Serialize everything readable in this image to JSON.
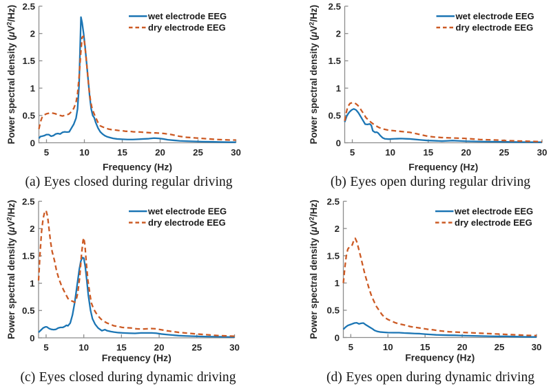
{
  "figure": {
    "background": "#ffffff",
    "colors": {
      "wet_line": "#1b75b4",
      "dry_line": "#cc5a24",
      "axis": "#8c8c8c",
      "tick_label": "#262626",
      "caption_text": "#141414"
    },
    "legend": {
      "entries": [
        {
          "label": "wet electrode EEG",
          "style": "solid"
        },
        {
          "label": "dry electrode EEG",
          "style": "dashed"
        }
      ],
      "position": "northeast",
      "box": false
    }
  },
  "chart_data": [
    {
      "id": "a",
      "type": "line",
      "caption": "(a) Eyes closed during regular driving",
      "xlabel": "Frequency (Hz)",
      "ylabel": "Power spectral density (μV²/Hz)",
      "xlim": [
        4,
        30
      ],
      "ylim": [
        0,
        2.5
      ],
      "xticks": [
        5,
        10,
        15,
        20,
        25,
        30
      ],
      "yticks": [
        0,
        0.5,
        1,
        1.5,
        2,
        2.5
      ],
      "ytick_labels": [
        "0",
        "0.5",
        "1",
        "1.5",
        "2",
        "2.5"
      ],
      "grid": false,
      "series": [
        {
          "name": "wet electrode EEG",
          "style": "solid",
          "color_key": "wet_line",
          "x": [
            4.0,
            4.2,
            4.4,
            4.7,
            5.0,
            5.3,
            5.6,
            5.9,
            6.2,
            6.5,
            6.8,
            7.1,
            7.4,
            7.7,
            8.0,
            8.3,
            8.6,
            8.9,
            9.1,
            9.3,
            9.45,
            9.55,
            9.7,
            9.9,
            10.1,
            10.3,
            10.5,
            10.7,
            10.9,
            11.1,
            11.3,
            11.5,
            11.8,
            12.1,
            12.4,
            12.7,
            13.0,
            13.4,
            13.8,
            14.3,
            15.0,
            15.7,
            16.4,
            17.1,
            17.8,
            18.5,
            19.2,
            19.8,
            20.4,
            21.0,
            21.8,
            22.6,
            23.5,
            24.5,
            25.5,
            26.5,
            27.5,
            28.5,
            29.2,
            30.0
          ],
          "y": [
            0.08,
            0.115,
            0.12,
            0.13,
            0.15,
            0.15,
            0.12,
            0.13,
            0.16,
            0.17,
            0.16,
            0.19,
            0.2,
            0.195,
            0.2,
            0.27,
            0.34,
            0.45,
            0.62,
            1.05,
            1.8,
            2.3,
            2.2,
            2.0,
            1.75,
            1.45,
            1.15,
            0.85,
            0.62,
            0.5,
            0.46,
            0.37,
            0.27,
            0.2,
            0.16,
            0.13,
            0.11,
            0.095,
            0.08,
            0.07,
            0.065,
            0.06,
            0.06,
            0.065,
            0.07,
            0.075,
            0.085,
            0.08,
            0.07,
            0.055,
            0.045,
            0.035,
            0.03,
            0.025,
            0.02,
            0.018,
            0.015,
            0.012,
            0.01,
            0.01
          ]
        },
        {
          "name": "dry electrode EEG",
          "style": "dashed",
          "color_key": "dry_line",
          "x": [
            4.0,
            4.2,
            4.4,
            4.7,
            5.0,
            5.3,
            5.6,
            5.9,
            6.2,
            6.5,
            6.8,
            7.1,
            7.4,
            7.7,
            8.0,
            8.3,
            8.6,
            8.9,
            9.1,
            9.3,
            9.5,
            9.7,
            9.85,
            10.0,
            10.2,
            10.4,
            10.6,
            10.8,
            11.0,
            11.2,
            11.5,
            11.8,
            12.1,
            12.4,
            12.8,
            13.2,
            13.6,
            14.0,
            14.5,
            15.0,
            15.5,
            16.0,
            16.5,
            17.0,
            17.5,
            18.0,
            18.5,
            19.0,
            19.5,
            20.0,
            20.5,
            21.0,
            21.5,
            22.0,
            22.5,
            23.0,
            23.5,
            24.5,
            25.5,
            26.5,
            27.5,
            28.5,
            29.2,
            30.0
          ],
          "y": [
            0.25,
            0.38,
            0.46,
            0.51,
            0.53,
            0.54,
            0.55,
            0.54,
            0.53,
            0.51,
            0.5,
            0.49,
            0.5,
            0.51,
            0.53,
            0.57,
            0.63,
            0.74,
            0.9,
            1.2,
            1.6,
            1.93,
            1.95,
            1.85,
            1.6,
            1.3,
            1.0,
            0.78,
            0.64,
            0.56,
            0.46,
            0.37,
            0.31,
            0.29,
            0.27,
            0.25,
            0.24,
            0.235,
            0.225,
            0.22,
            0.21,
            0.21,
            0.2,
            0.2,
            0.195,
            0.19,
            0.185,
            0.18,
            0.18,
            0.175,
            0.17,
            0.16,
            0.15,
            0.135,
            0.12,
            0.11,
            0.1,
            0.09,
            0.08,
            0.07,
            0.06,
            0.055,
            0.05,
            0.05
          ]
        }
      ]
    },
    {
      "id": "b",
      "type": "line",
      "caption": "(b) Eyes open during regular driving",
      "xlabel": "Frequency (Hz)",
      "ylabel": "Power spectral density (μV²/Hz)",
      "xlim": [
        4,
        30
      ],
      "ylim": [
        0,
        2.5
      ],
      "xticks": [
        5,
        10,
        15,
        20,
        25,
        30
      ],
      "yticks": [
        0,
        0.5,
        1,
        1.5,
        2,
        2.5
      ],
      "ytick_labels": [
        "0",
        "0.5",
        "1",
        "1.5",
        "2",
        "2.5"
      ],
      "grid": false,
      "series": [
        {
          "name": "wet electrode EEG",
          "style": "solid",
          "color_key": "wet_line",
          "x": [
            4.0,
            4.3,
            4.6,
            4.9,
            5.2,
            5.5,
            5.8,
            6.1,
            6.4,
            6.7,
            7.0,
            7.3,
            7.5,
            7.7,
            8.0,
            8.2,
            8.4,
            8.7,
            9.0,
            9.3,
            9.8,
            10.5,
            11.0,
            11.4,
            12.0,
            12.6,
            13.1,
            14.0,
            14.9,
            15.8,
            16.8,
            17.5,
            18.2,
            19.0,
            20.0,
            21.0,
            22.0,
            23.0,
            24.5,
            26.0,
            27.5,
            29.0,
            30.0
          ],
          "y": [
            0.38,
            0.5,
            0.56,
            0.6,
            0.62,
            0.6,
            0.55,
            0.48,
            0.41,
            0.34,
            0.335,
            0.345,
            0.32,
            0.22,
            0.19,
            0.195,
            0.18,
            0.13,
            0.09,
            0.072,
            0.067,
            0.072,
            0.075,
            0.077,
            0.073,
            0.07,
            0.064,
            0.052,
            0.042,
            0.037,
            0.031,
            0.035,
            0.04,
            0.035,
            0.028,
            0.025,
            0.022,
            0.02,
            0.018,
            0.015,
            0.012,
            0.01,
            0.01
          ]
        },
        {
          "name": "dry electrode EEG",
          "style": "dashed",
          "color_key": "dry_line",
          "x": [
            4.0,
            4.2,
            4.4,
            4.7,
            5.0,
            5.3,
            5.6,
            5.9,
            6.2,
            6.5,
            6.8,
            7.1,
            7.5,
            8.0,
            8.5,
            9.1,
            9.8,
            10.5,
            11.2,
            11.9,
            12.6,
            13.3,
            14.1,
            14.9,
            15.8,
            16.8,
            17.8,
            18.8,
            19.8,
            20.8,
            21.8,
            22.8,
            24.0,
            25.2,
            26.4,
            27.6,
            28.8,
            30.0
          ],
          "y": [
            0.4,
            0.55,
            0.66,
            0.72,
            0.735,
            0.73,
            0.7,
            0.66,
            0.59,
            0.53,
            0.46,
            0.42,
            0.37,
            0.32,
            0.28,
            0.25,
            0.23,
            0.22,
            0.21,
            0.2,
            0.19,
            0.17,
            0.145,
            0.12,
            0.105,
            0.095,
            0.09,
            0.085,
            0.08,
            0.07,
            0.06,
            0.055,
            0.05,
            0.04,
            0.035,
            0.03,
            0.025,
            0.02
          ]
        }
      ]
    },
    {
      "id": "c",
      "type": "line",
      "caption": "(c) Eyes closed during dynamic driving",
      "xlabel": "Frequency (Hz)",
      "ylabel": "Power spectral density (μV²/Hz)",
      "xlim": [
        4,
        30
      ],
      "ylim": [
        0,
        2.5
      ],
      "xticks": [
        5,
        10,
        15,
        20,
        25,
        30
      ],
      "yticks": [
        0,
        0.5,
        1,
        1.5,
        2,
        2.5
      ],
      "ytick_labels": [
        "0",
        "0.5",
        "1",
        "1.5",
        "2",
        "2.5"
      ],
      "grid": false,
      "series": [
        {
          "name": "wet electrode EEG",
          "style": "solid",
          "color_key": "wet_line",
          "x": [
            4.0,
            4.3,
            4.6,
            4.9,
            5.1,
            5.4,
            5.7,
            6.0,
            6.3,
            6.6,
            6.9,
            7.2,
            7.5,
            7.7,
            7.9,
            8.2,
            8.5,
            8.8,
            9.1,
            9.4,
            9.6,
            9.8,
            10.0,
            10.2,
            10.4,
            10.6,
            10.9,
            11.15,
            11.5,
            11.9,
            12.4,
            12.8,
            13.1,
            13.6,
            14.0,
            14.6,
            15.2,
            16.0,
            16.8,
            17.6,
            18.4,
            19.0,
            19.6,
            20.3,
            21.0,
            21.8,
            22.6,
            23.5,
            24.5,
            25.5,
            26.5,
            27.5,
            28.5,
            29.2,
            30.0
          ],
          "y": [
            0.1,
            0.14,
            0.18,
            0.2,
            0.2,
            0.17,
            0.155,
            0.15,
            0.155,
            0.18,
            0.19,
            0.19,
            0.21,
            0.23,
            0.22,
            0.27,
            0.42,
            0.65,
            0.95,
            1.25,
            1.4,
            1.47,
            1.46,
            1.3,
            1.05,
            0.78,
            0.5,
            0.35,
            0.25,
            0.18,
            0.13,
            0.15,
            0.13,
            0.115,
            0.105,
            0.095,
            0.09,
            0.085,
            0.082,
            0.09,
            0.09,
            0.09,
            0.085,
            0.07,
            0.06,
            0.05,
            0.04,
            0.035,
            0.03,
            0.025,
            0.022,
            0.02,
            0.018,
            0.016,
            0.015
          ]
        },
        {
          "name": "dry electrode EEG",
          "style": "dashed",
          "color_key": "dry_line",
          "x": [
            4.0,
            4.2,
            4.4,
            4.6,
            4.8,
            5.0,
            5.2,
            5.4,
            5.6,
            5.8,
            6.1,
            6.4,
            6.7,
            7.0,
            7.3,
            7.6,
            7.9,
            8.2,
            8.5,
            8.8,
            9.0,
            9.2,
            9.45,
            9.7,
            9.9,
            10.0,
            10.15,
            10.35,
            10.55,
            10.8,
            11.0,
            11.3,
            11.6,
            11.9,
            12.3,
            12.7,
            13.1,
            13.5,
            14.0,
            14.5,
            15.1,
            15.7,
            16.3,
            17.0,
            17.7,
            18.4,
            19.0,
            19.6,
            20.2,
            21.0,
            21.8,
            22.6,
            23.4,
            24.2,
            25.0,
            26.0,
            27.0,
            28.0,
            29.0,
            30.0
          ],
          "y": [
            1.05,
            1.55,
            1.95,
            2.18,
            2.3,
            2.33,
            2.22,
            1.98,
            1.75,
            1.58,
            1.42,
            1.22,
            1.08,
            0.97,
            0.88,
            0.8,
            0.72,
            0.685,
            0.67,
            0.65,
            0.7,
            0.82,
            1.1,
            1.53,
            1.78,
            1.83,
            1.7,
            1.35,
            1.05,
            0.81,
            0.64,
            0.53,
            0.46,
            0.4,
            0.34,
            0.3,
            0.27,
            0.25,
            0.22,
            0.21,
            0.19,
            0.185,
            0.18,
            0.165,
            0.16,
            0.165,
            0.17,
            0.165,
            0.15,
            0.13,
            0.115,
            0.1,
            0.09,
            0.08,
            0.07,
            0.06,
            0.05,
            0.04,
            0.035,
            0.03
          ]
        }
      ]
    },
    {
      "id": "d",
      "type": "line",
      "caption": "(d) Eyes open during dynamic driving",
      "xlabel": "Frequency (Hz)",
      "ylabel": "Power spectral density (μV²/Hz)",
      "xlim": [
        4,
        30
      ],
      "ylim": [
        0,
        2.5
      ],
      "xticks": [
        5,
        10,
        15,
        20,
        25,
        30
      ],
      "yticks": [
        0,
        0.5,
        1,
        1.5,
        2,
        2.5
      ],
      "ytick_labels": [
        "0",
        "0.5",
        "1",
        "1.5",
        "2",
        "2.5"
      ],
      "grid": false,
      "series": [
        {
          "name": "wet electrode EEG",
          "style": "solid",
          "color_key": "wet_line",
          "x": [
            4.0,
            4.3,
            4.6,
            4.9,
            5.2,
            5.5,
            5.8,
            6.1,
            6.4,
            6.7,
            7.0,
            7.3,
            7.6,
            7.9,
            8.2,
            8.6,
            9.0,
            9.5,
            10.0,
            10.7,
            11.5,
            12.2,
            12.9,
            13.6,
            14.3,
            15.0,
            15.7,
            16.5,
            17.3,
            18.1,
            19.0,
            20.0,
            21.0,
            22.0,
            23.0,
            24.0,
            25.0,
            25.8,
            26.6,
            27.5,
            28.5,
            29.2,
            30.0
          ],
          "y": [
            0.15,
            0.19,
            0.22,
            0.235,
            0.25,
            0.265,
            0.27,
            0.25,
            0.26,
            0.265,
            0.235,
            0.21,
            0.185,
            0.16,
            0.13,
            0.11,
            0.1,
            0.095,
            0.09,
            0.088,
            0.088,
            0.082,
            0.078,
            0.073,
            0.07,
            0.062,
            0.055,
            0.048,
            0.045,
            0.042,
            0.04,
            0.035,
            0.032,
            0.028,
            0.025,
            0.022,
            0.02,
            0.022,
            0.018,
            0.015,
            0.012,
            0.01,
            0.01
          ]
        },
        {
          "name": "dry electrode EEG",
          "style": "dashed",
          "color_key": "dry_line",
          "x": [
            4.0,
            4.2,
            4.4,
            4.6,
            4.8,
            5.0,
            5.2,
            5.4,
            5.6,
            5.8,
            6.0,
            6.3,
            6.6,
            6.9,
            7.2,
            7.5,
            7.8,
            8.1,
            8.4,
            8.8,
            9.2,
            9.6,
            10.0,
            10.5,
            11.0,
            11.5,
            12.0,
            12.5,
            13.0,
            13.5,
            14.0,
            14.7,
            15.4,
            16.1,
            16.8,
            17.5,
            18.2,
            19.0,
            19.8,
            20.6,
            21.4,
            22.2,
            23.0,
            23.8,
            24.6,
            25.4,
            26.2,
            27.0,
            27.8,
            28.6,
            29.3,
            30.0
          ],
          "y": [
            1.0,
            1.28,
            1.5,
            1.62,
            1.66,
            1.67,
            1.7,
            1.78,
            1.82,
            1.76,
            1.66,
            1.5,
            1.33,
            1.16,
            1.02,
            0.88,
            0.76,
            0.67,
            0.58,
            0.5,
            0.42,
            0.365,
            0.33,
            0.3,
            0.27,
            0.25,
            0.235,
            0.22,
            0.2,
            0.19,
            0.18,
            0.165,
            0.15,
            0.14,
            0.125,
            0.115,
            0.105,
            0.1,
            0.095,
            0.09,
            0.085,
            0.08,
            0.075,
            0.07,
            0.065,
            0.06,
            0.055,
            0.05,
            0.045,
            0.04,
            0.037,
            0.035
          ]
        }
      ]
    }
  ]
}
